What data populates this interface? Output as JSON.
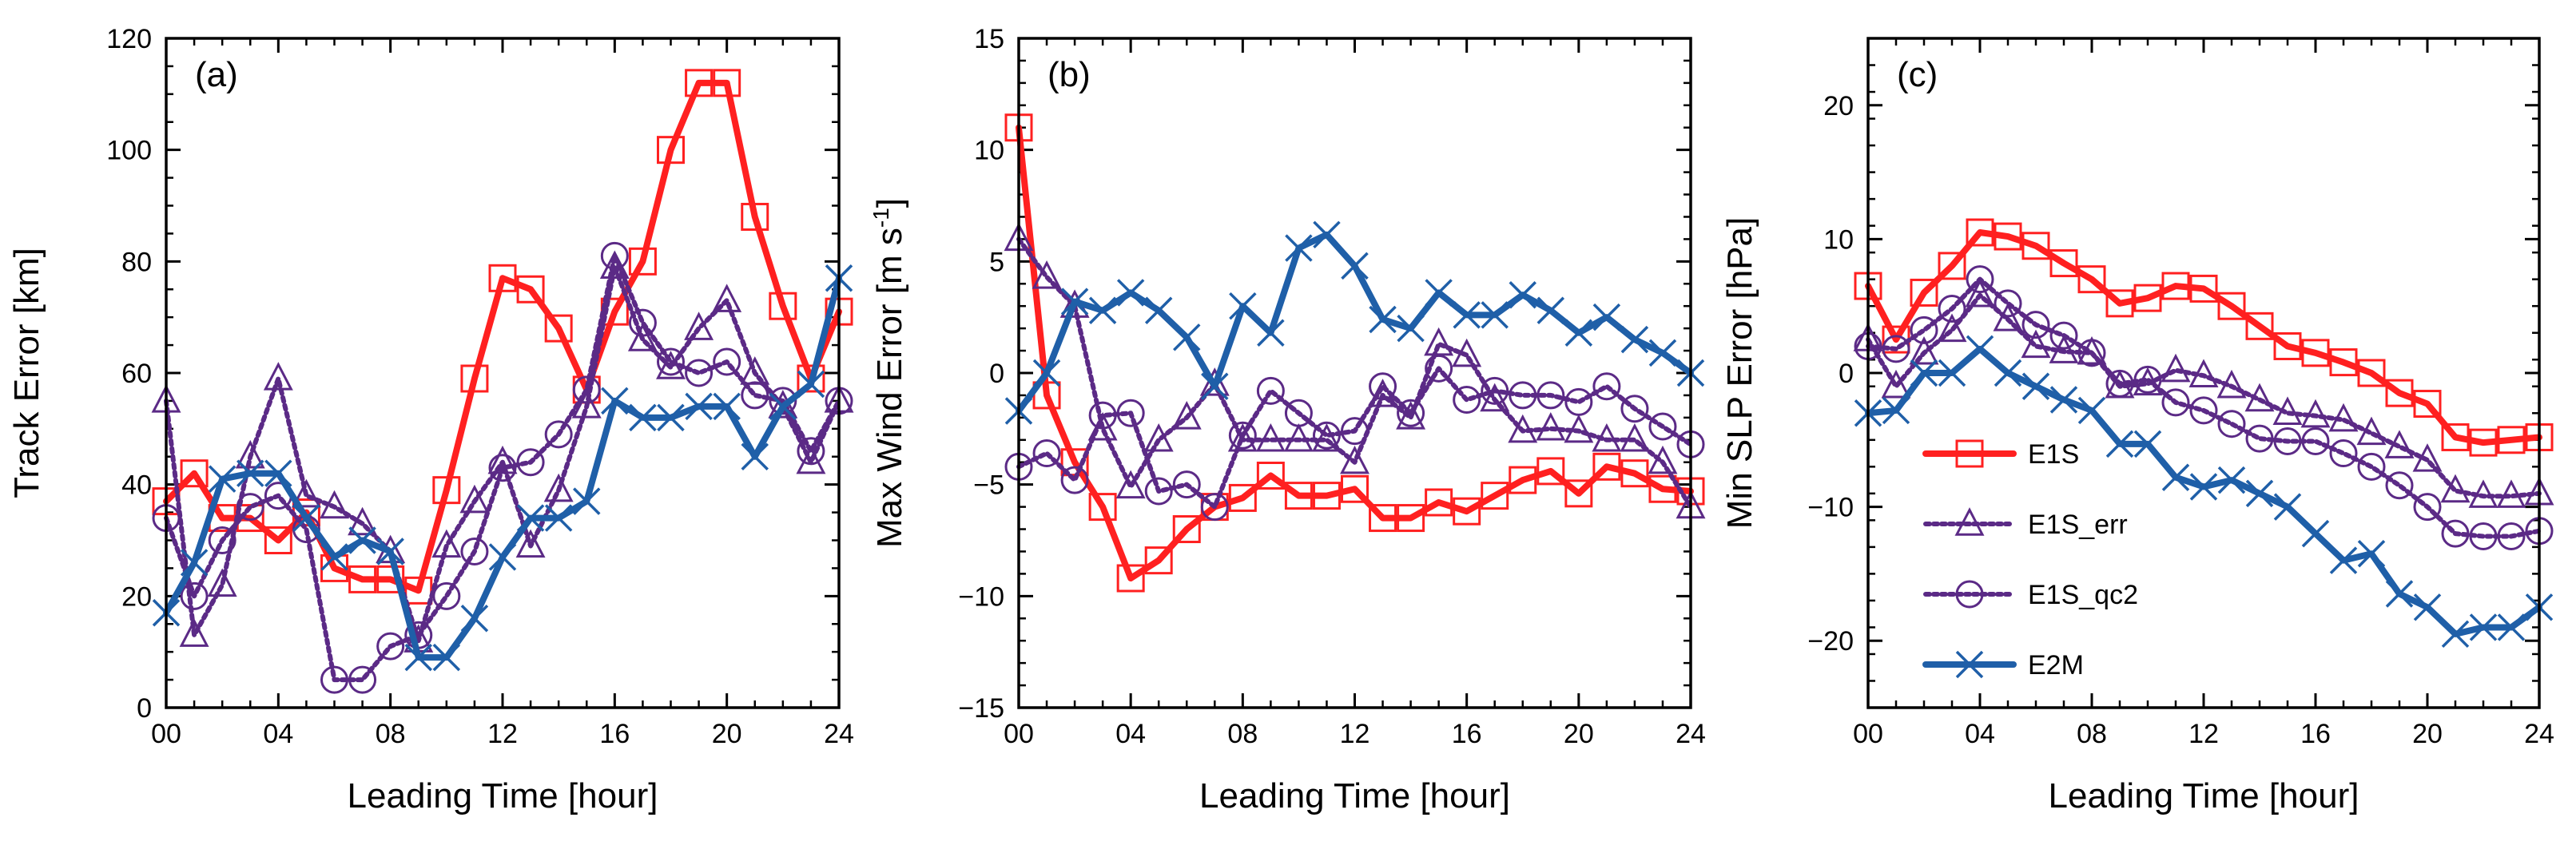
{
  "chart_data": [
    {
      "type": "line",
      "panel_label": "(a)",
      "title": "",
      "xlabel": "Leading Time [hour]",
      "ylabel": "Track Error [km]",
      "xlim": [
        0,
        24
      ],
      "ylim": [
        0,
        120
      ],
      "x_ticks": [
        0,
        4,
        8,
        12,
        16,
        20,
        24
      ],
      "x_tick_labels": [
        "00",
        "04",
        "08",
        "12",
        "16",
        "20",
        "24"
      ],
      "y_ticks": [
        0,
        20,
        40,
        60,
        80,
        100,
        120
      ],
      "y_tick_labels": [
        "0",
        "20",
        "40",
        "60",
        "80",
        "100",
        "120"
      ],
      "y_minor_step": 5,
      "x": [
        0,
        1,
        2,
        3,
        4,
        5,
        6,
        7,
        8,
        9,
        10,
        11,
        12,
        13,
        14,
        15,
        16,
        17,
        18,
        19,
        20,
        21,
        22,
        23,
        24
      ],
      "series": [
        {
          "name": "E1S",
          "color": "#ff2020",
          "marker": "square",
          "style": "solid",
          "values": [
            37,
            42,
            34,
            34,
            30,
            35,
            25,
            23,
            23,
            21,
            39,
            59,
            77,
            75,
            68,
            57,
            71,
            80,
            100,
            112,
            112,
            88,
            72,
            59,
            71
          ]
        },
        {
          "name": "E1S_err",
          "color": "#5b2a86",
          "marker": "triangle",
          "style": "dashed",
          "values": [
            55,
            13,
            22,
            45,
            59,
            38,
            36,
            33,
            28,
            12,
            29,
            37,
            44,
            29,
            39,
            54,
            79,
            66,
            61,
            68,
            73,
            60,
            54,
            44,
            55
          ]
        },
        {
          "name": "E1S_qc2",
          "color": "#5b2a86",
          "marker": "circle",
          "style": "dashed",
          "values": [
            34,
            20,
            30,
            36,
            38,
            32,
            5,
            5,
            11,
            13,
            20,
            28,
            43,
            44,
            49,
            57,
            81,
            69,
            62,
            60,
            62,
            56,
            55,
            46,
            55
          ]
        },
        {
          "name": "E2M",
          "color": "#1f5fa8",
          "marker": "x",
          "style": "solid",
          "values": [
            17,
            26,
            41,
            42,
            42,
            34,
            27,
            30,
            28,
            9,
            9,
            16,
            27,
            34,
            34,
            37,
            55,
            52,
            52,
            54,
            54,
            45,
            54,
            58,
            77
          ]
        }
      ]
    },
    {
      "type": "line",
      "panel_label": "(b)",
      "title": "",
      "xlabel": "Leading Time [hour]",
      "ylabel_main": "Max Wind Error [m s",
      "ylabel_sup": "-1",
      "ylabel_close": "]",
      "xlim": [
        0,
        24
      ],
      "ylim": [
        -15,
        15
      ],
      "x_ticks": [
        0,
        4,
        8,
        12,
        16,
        20,
        24
      ],
      "x_tick_labels": [
        "00",
        "04",
        "08",
        "12",
        "16",
        "20",
        "24"
      ],
      "y_ticks": [
        -15,
        -10,
        -5,
        0,
        5,
        10,
        15
      ],
      "y_tick_labels": [
        "−15",
        "−10",
        "−5",
        "0",
        "5",
        "10",
        "15"
      ],
      "y_minor_step": 1,
      "x": [
        0,
        1,
        2,
        3,
        4,
        5,
        6,
        7,
        8,
        9,
        10,
        11,
        12,
        13,
        14,
        15,
        16,
        17,
        18,
        19,
        20,
        21,
        22,
        23,
        24
      ],
      "series": [
        {
          "name": "E1S",
          "color": "#ff2020",
          "marker": "square",
          "style": "solid",
          "values": [
            11,
            -1,
            -4,
            -6,
            -9.2,
            -8.4,
            -7,
            -6,
            -5.6,
            -4.6,
            -5.5,
            -5.5,
            -5.2,
            -6.5,
            -6.5,
            -5.8,
            -6.2,
            -5.5,
            -4.8,
            -4.4,
            -5.4,
            -4.2,
            -4.5,
            -5.2,
            -5.3
          ]
        },
        {
          "name": "E1S_err",
          "color": "#5b2a86",
          "marker": "triangle",
          "style": "dashed",
          "values": [
            6,
            4.3,
            3,
            -2.5,
            -5.1,
            -3,
            -2,
            -0.5,
            -3,
            -3,
            -3,
            -3,
            -4,
            -1,
            -2,
            1.3,
            0.8,
            -1.2,
            -2.6,
            -2.5,
            -2.6,
            -3,
            -3,
            -4,
            -6
          ]
        },
        {
          "name": "E1S_qc2",
          "color": "#5b2a86",
          "marker": "circle",
          "style": "dashed",
          "values": [
            -4.2,
            -3.6,
            -4.8,
            -1.9,
            -1.8,
            -5.3,
            -5,
            -6,
            -2.8,
            -0.8,
            -1.8,
            -2.8,
            -2.6,
            -0.6,
            -1.8,
            0.2,
            -1.2,
            -0.8,
            -1,
            -1,
            -1.3,
            -0.6,
            -1.6,
            -2.4,
            -3.2
          ]
        },
        {
          "name": "E2M",
          "color": "#1f5fa8",
          "marker": "x",
          "style": "solid",
          "values": [
            -1.7,
            0,
            3.2,
            2.8,
            3.6,
            2.8,
            1.6,
            -0.6,
            3,
            1.8,
            5.6,
            6.2,
            4.8,
            2.4,
            2,
            3.6,
            2.6,
            2.6,
            3.5,
            2.8,
            1.8,
            2.5,
            1.5,
            0.9,
            0
          ]
        }
      ]
    },
    {
      "type": "line",
      "panel_label": "(c)",
      "title": "",
      "xlabel": "Leading Time [hour]",
      "ylabel": "Min SLP Error [hPa]",
      "xlim": [
        0,
        24
      ],
      "ylim": [
        -25,
        25
      ],
      "x_ticks": [
        0,
        4,
        8,
        12,
        16,
        20,
        24
      ],
      "x_tick_labels": [
        "00",
        "04",
        "08",
        "12",
        "16",
        "20",
        "24"
      ],
      "y_ticks": [
        -20,
        -10,
        0,
        10,
        20
      ],
      "y_tick_labels": [
        "−20",
        "−10",
        "0",
        "10",
        "20"
      ],
      "y_minor_step": 2,
      "legend_position": "center-left",
      "x": [
        0,
        1,
        2,
        3,
        4,
        5,
        6,
        7,
        8,
        9,
        10,
        11,
        12,
        13,
        14,
        15,
        16,
        17,
        18,
        19,
        20,
        21,
        22,
        23,
        24
      ],
      "series": [
        {
          "name": "E1S",
          "color": "#ff2020",
          "marker": "square",
          "style": "solid",
          "values": [
            6.5,
            2.5,
            6,
            8,
            10.5,
            10.2,
            9.5,
            8.2,
            7,
            5.2,
            5.6,
            6.5,
            6.3,
            5,
            3.5,
            2,
            1.5,
            0.8,
            0,
            -1.5,
            -2.3,
            -4.8,
            -5.2,
            -5,
            -4.8
          ]
        },
        {
          "name": "E1S_err",
          "color": "#5b2a86",
          "marker": "triangle",
          "style": "dashed",
          "values": [
            2.5,
            -1,
            1.5,
            3.2,
            5.8,
            4,
            2,
            1.6,
            1.5,
            -1,
            -0.8,
            0.2,
            -0.2,
            -1,
            -2,
            -3,
            -3.2,
            -3.5,
            -4.5,
            -5.5,
            -6.5,
            -8.8,
            -9.2,
            -9.2,
            -9
          ]
        },
        {
          "name": "E1S_qc2",
          "color": "#5b2a86",
          "marker": "circle",
          "style": "dashed",
          "values": [
            2,
            1.8,
            3.2,
            4.8,
            7,
            5.2,
            3.6,
            2.8,
            1.5,
            -0.8,
            -0.5,
            -2.2,
            -2.8,
            -3.8,
            -4.9,
            -5.1,
            -5.1,
            -6,
            -7,
            -8.4,
            -10,
            -12,
            -12.2,
            -12.2,
            -11.8
          ]
        },
        {
          "name": "E2M",
          "color": "#1f5fa8",
          "marker": "x",
          "style": "solid",
          "values": [
            -3,
            -2.8,
            0,
            0,
            1.8,
            0,
            -1,
            -2,
            -2.8,
            -5.3,
            -5.3,
            -7.8,
            -8.5,
            -8,
            -9,
            -10,
            -12,
            -14,
            -13.5,
            -16.5,
            -17.5,
            -19.5,
            -19,
            -19,
            -17.5
          ]
        }
      ]
    }
  ]
}
